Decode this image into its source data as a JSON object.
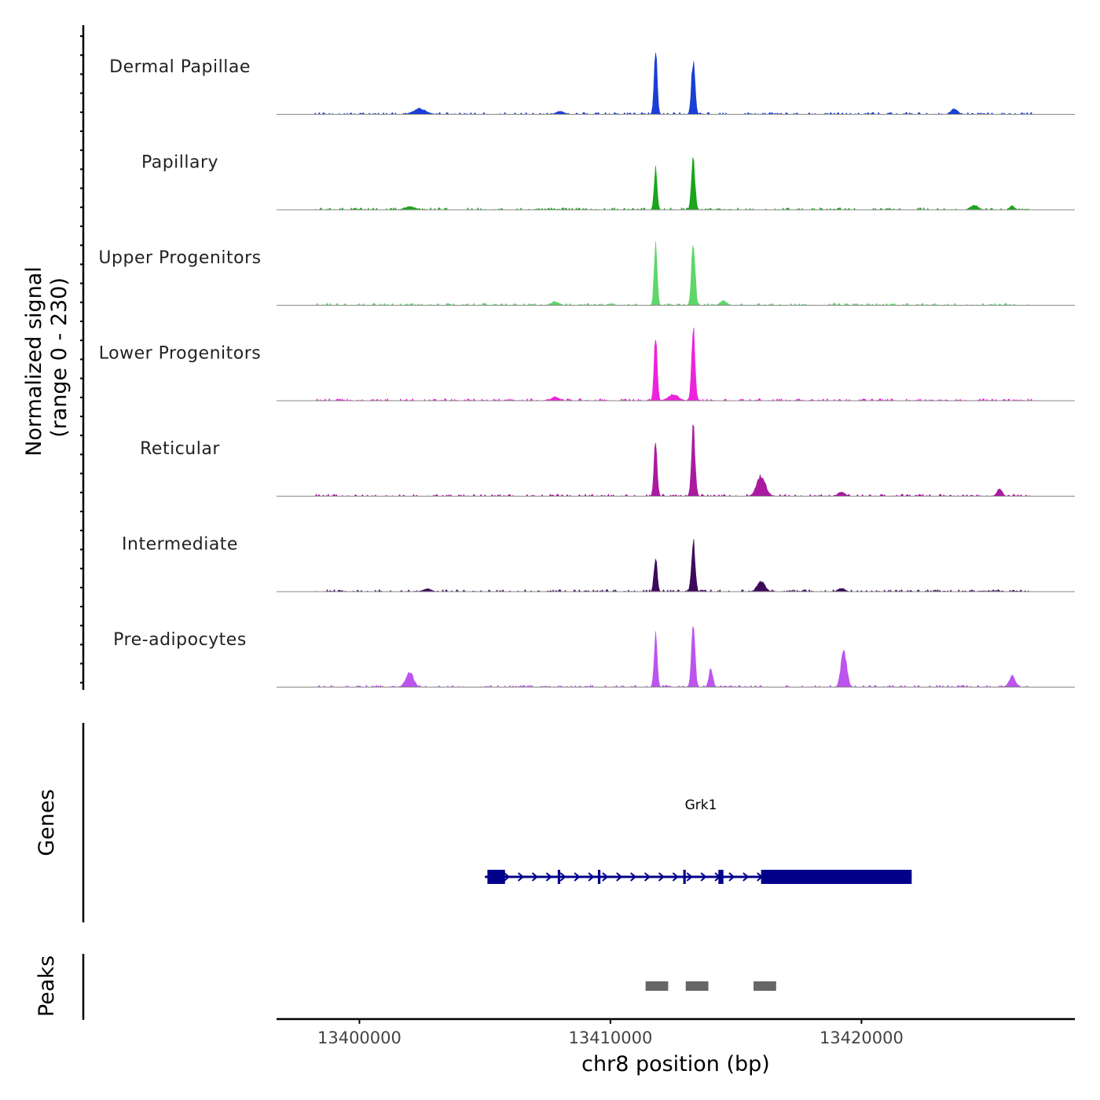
{
  "chart_data": {
    "type": "area",
    "title": "",
    "ylabel": "Normalized signal",
    "ylabel_range": "(range 0 - 230)",
    "y_range": [
      0,
      230
    ],
    "xlabel": "chr8 position (bp)",
    "x_range": [
      13396700,
      13428500
    ],
    "x_ticks": [
      13400000,
      13410000,
      13420000
    ],
    "x_tick_labels": [
      "13400000",
      "13410000",
      "13420000"
    ],
    "signal_extent": [
      13398200,
      13426800
    ],
    "tracks": [
      {
        "name": "Dermal Papillae",
        "color": "#1a3fd6",
        "peaks": [
          [
            13402400,
            18,
            500
          ],
          [
            13411800,
            220,
            120
          ],
          [
            13413300,
            170,
            140
          ],
          [
            13423700,
            18,
            250
          ],
          [
            13408000,
            10,
            300
          ]
        ]
      },
      {
        "name": "Papillary",
        "color": "#1aa51a",
        "peaks": [
          [
            13411800,
            130,
            120
          ],
          [
            13413300,
            160,
            140
          ],
          [
            13402000,
            10,
            400
          ],
          [
            13424500,
            15,
            300
          ],
          [
            13426000,
            12,
            200
          ]
        ]
      },
      {
        "name": "Upper Progenitors",
        "color": "#5fd66a",
        "peaks": [
          [
            13411800,
            185,
            120
          ],
          [
            13413300,
            210,
            140
          ],
          [
            13407800,
            12,
            300
          ],
          [
            13414500,
            15,
            250
          ]
        ]
      },
      {
        "name": "Lower Progenitors",
        "color": "#ee22dd",
        "peaks": [
          [
            13411800,
            230,
            120
          ],
          [
            13413300,
            225,
            140
          ],
          [
            13407800,
            12,
            300
          ],
          [
            13412500,
            20,
            400
          ]
        ]
      },
      {
        "name": "Reticular",
        "color": "#aa1aa0",
        "peaks": [
          [
            13411800,
            180,
            120
          ],
          [
            13413300,
            230,
            140
          ],
          [
            13416000,
            65,
            350
          ],
          [
            13425500,
            25,
            200
          ],
          [
            13419200,
            15,
            250
          ]
        ]
      },
      {
        "name": "Intermediate",
        "color": "#3c0a5a",
        "peaks": [
          [
            13411800,
            120,
            120
          ],
          [
            13413300,
            170,
            140
          ],
          [
            13416000,
            35,
            300
          ],
          [
            13402700,
            10,
            300
          ],
          [
            13419200,
            12,
            250
          ]
        ]
      },
      {
        "name": "Pre-adipocytes",
        "color": "#bb55ee",
        "peaks": [
          [
            13411800,
            185,
            120
          ],
          [
            13413300,
            200,
            140
          ],
          [
            13419300,
            120,
            220
          ],
          [
            13402000,
            50,
            300
          ],
          [
            13414000,
            60,
            150
          ],
          [
            13426000,
            35,
            250
          ]
        ]
      }
    ],
    "genes_label": "Genes",
    "genes": [
      {
        "name": "Grk1",
        "start": 13405000,
        "end": 13422000,
        "strand": "+",
        "exons": [
          [
            13405100,
            13405800
          ],
          [
            13407900,
            13408000
          ],
          [
            13409500,
            13409600
          ],
          [
            13412900,
            13413000
          ],
          [
            13414300,
            13414500
          ],
          [
            13416000,
            13422000
          ]
        ]
      }
    ],
    "peaks_label": "Peaks",
    "peak_regions": [
      [
        13411400,
        13412300
      ],
      [
        13413000,
        13413900
      ],
      [
        13415700,
        13416600
      ]
    ],
    "colors": {
      "gene": "#00008b",
      "peak_region": "#666666",
      "axis": "#000000",
      "baseline": "#888888"
    }
  }
}
